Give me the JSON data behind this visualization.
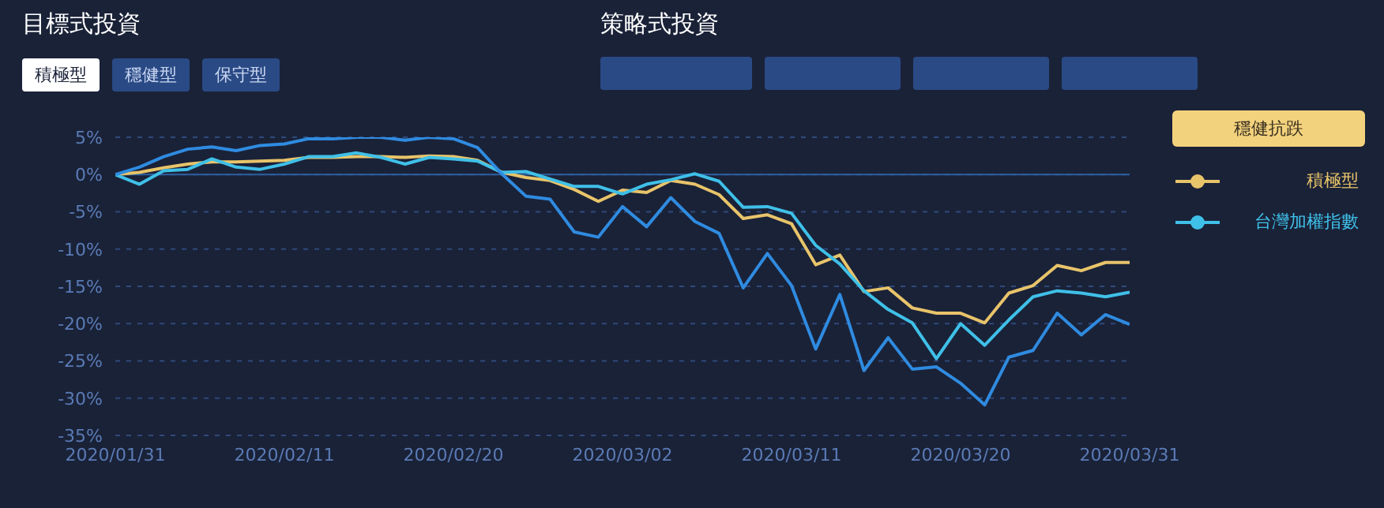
{
  "chart_data": {
    "type": "line",
    "title": "目標式投資",
    "legend_title": "穩健抗跌",
    "annotations": [
      "積極型",
      "穩健型",
      "保守型",
      "策略式投資"
    ],
    "categories": [
      "2020/01/31",
      null,
      null,
      null,
      null,
      null,
      null,
      "2020/02/11",
      null,
      null,
      null,
      null,
      null,
      null,
      "2020/02/20",
      null,
      null,
      null,
      null,
      null,
      null,
      "2020/03/02",
      null,
      null,
      null,
      null,
      null,
      null,
      "2020/03/11",
      null,
      null,
      null,
      null,
      null,
      null,
      "2020/03/20",
      null,
      null,
      null,
      null,
      null,
      null,
      "2020/03/31"
    ],
    "series": [
      {
        "name": "積極型",
        "color": "#e8c46a",
        "values": [
          0,
          0.3,
          0.9,
          1.4,
          1.7,
          1.7,
          1.8,
          1.9,
          2.3,
          2.3,
          2.4,
          2.4,
          2.3,
          2.5,
          2.4,
          1.9,
          0.3,
          -0.4,
          -0.8,
          -2,
          -3.6,
          -2.1,
          -2.4,
          -0.8,
          -1.3,
          -2.7,
          -5.9,
          -5.4,
          -6.6,
          -12.1,
          -10.8,
          -15.7,
          -15.2,
          -17.9,
          -18.6,
          -18.6,
          -19.9,
          -15.9,
          -14.9,
          -12.2,
          -12.9,
          -11.8,
          -11.8
        ]
      },
      {
        "name": "台灣加權指數",
        "color": "#3fc0e8",
        "values": [
          0,
          -1.3,
          0.5,
          0.7,
          2.1,
          1,
          0.7,
          1.4,
          2.4,
          2.4,
          2.9,
          2.3,
          1.4,
          2.3,
          2.1,
          1.8,
          0.3,
          0.4,
          -0.6,
          -1.6,
          -1.6,
          -2.6,
          -1.3,
          -0.7,
          0.1,
          -0.9,
          -4.4,
          -4.3,
          -5.2,
          -9.5,
          -12,
          -15.6,
          -18.1,
          -19.9,
          -24.7,
          -20,
          -22.9,
          -19.5,
          -16.4,
          -15.6,
          -15.9,
          -16.4,
          -15.8
        ]
      },
      {
        "color": "#2f8be0",
        "values": [
          0,
          1,
          2.4,
          3.4,
          3.7,
          3.2,
          3.9,
          4.1,
          4.8,
          4.8,
          5,
          5,
          4.6,
          5,
          4.8,
          3.6,
          0.1,
          -2.9,
          -3.3,
          -7.7,
          -8.4,
          -4.3,
          -7,
          -3.1,
          -6.3,
          -7.9,
          -15.2,
          -10.6,
          -14.9,
          -23.4,
          -16.1,
          -26.3,
          -21.9,
          -26.1,
          -25.8,
          -28,
          -30.9,
          -24.5,
          -23.6,
          -18.6,
          -21.5,
          -18.8,
          -20.1
        ]
      }
    ],
    "ylim": [
      -35,
      5
    ],
    "yticks": [
      {
        "value": 5,
        "label": "5%"
      },
      {
        "value": 0,
        "label": "0%"
      },
      {
        "value": -5,
        "label": "-5%"
      },
      {
        "value": -10,
        "label": "-10%"
      },
      {
        "value": -15,
        "label": "-15%"
      },
      {
        "value": -20,
        "label": "-20%"
      },
      {
        "value": -25,
        "label": "-25%"
      },
      {
        "value": -30,
        "label": "-30%"
      },
      {
        "value": -35,
        "label": "-35%"
      }
    ],
    "grid": "y",
    "ref_lines": [
      {
        "axis": "y",
        "value": 0,
        "color": "#2d5fa0"
      }
    ],
    "legend": "right",
    "line_style": "solid"
  }
}
